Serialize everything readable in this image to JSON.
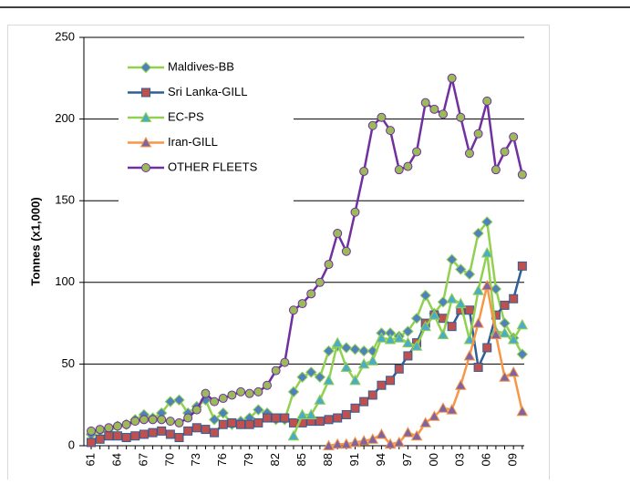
{
  "chart_data": {
    "type": "line",
    "y_label": "Tonnes (x1,000)",
    "categories": [
      "61",
      null,
      null,
      "64",
      null,
      null,
      "67",
      null,
      null,
      "70",
      null,
      null,
      "73",
      null,
      null,
      "76",
      null,
      null,
      "79",
      null,
      null,
      "82",
      null,
      null,
      "85",
      null,
      null,
      "88",
      null,
      null,
      "91",
      null,
      null,
      "94",
      null,
      null,
      "97",
      null,
      null,
      "00",
      null,
      null,
      "03",
      null,
      null,
      "06",
      null,
      null,
      "09",
      null
    ],
    "ylim": [
      0,
      250
    ],
    "yticks": [
      0,
      50,
      100,
      150,
      200,
      250
    ],
    "grid": true,
    "legend": "upper-left",
    "series": [
      {
        "name": "Maldives-BB",
        "color": "#92d050",
        "marker": "diamond",
        "marker_color": "#4f81bd",
        "values": [
          7,
          9,
          10,
          12,
          13,
          16,
          19,
          17,
          20,
          27,
          28,
          20,
          24,
          28,
          16,
          20,
          13,
          15,
          17,
          22,
          20,
          16,
          16,
          33,
          42,
          45,
          42,
          58,
          61,
          60,
          59,
          58,
          58,
          69,
          69,
          67,
          70,
          78,
          92,
          81,
          88,
          114,
          108,
          105,
          130,
          137,
          96,
          75,
          66,
          56
        ]
      },
      {
        "name": "Sri Lanka-GILL",
        "color": "#2e5f99",
        "marker": "square",
        "marker_color": "#c0504d",
        "values": [
          2,
          4,
          6,
          6,
          5,
          6,
          7,
          8,
          9,
          7,
          5,
          9,
          11,
          10,
          8,
          13,
          14,
          13,
          13,
          14,
          17,
          17,
          17,
          14,
          14,
          15,
          15,
          16,
          17,
          19,
          23,
          27,
          31,
          37,
          40,
          47,
          55,
          63,
          75,
          80,
          78,
          73,
          83,
          83,
          48,
          60,
          80,
          86,
          90,
          110
        ]
      },
      {
        "name": "EC-PS",
        "color": "#92d050",
        "marker": "triangle",
        "marker_color": "#4bacc6",
        "values": [
          null,
          null,
          null,
          null,
          null,
          null,
          null,
          null,
          null,
          null,
          null,
          null,
          null,
          null,
          null,
          null,
          null,
          null,
          null,
          null,
          null,
          null,
          null,
          6,
          19,
          19,
          28,
          40,
          63,
          48,
          40,
          50,
          52,
          66,
          65,
          66,
          63,
          61,
          73,
          80,
          68,
          90,
          87,
          65,
          95,
          118,
          70,
          69,
          65,
          74
        ]
      },
      {
        "name": "Iran-GILL",
        "color": "#f79646",
        "marker": "triangle",
        "marker_color": "#8064a2",
        "values": [
          null,
          null,
          null,
          null,
          null,
          null,
          null,
          null,
          null,
          null,
          null,
          null,
          null,
          null,
          null,
          null,
          null,
          null,
          null,
          null,
          null,
          null,
          null,
          null,
          null,
          null,
          null,
          0,
          1,
          1,
          2,
          3,
          4,
          7,
          1,
          2,
          8,
          6,
          14,
          18,
          23,
          22,
          37,
          55,
          75,
          98,
          68,
          42,
          45,
          21
        ]
      },
      {
        "name": "OTHER FLEETS",
        "color": "#7030a0",
        "marker": "circle",
        "marker_color": "#9bbb59",
        "values": [
          9,
          10,
          11,
          12,
          13,
          15,
          16,
          16,
          16,
          15,
          14,
          17,
          22,
          32,
          27,
          29,
          31,
          33,
          32,
          33,
          37,
          46,
          51,
          83,
          87,
          93,
          100,
          111,
          130,
          119,
          143,
          168,
          196,
          201,
          193,
          169,
          171,
          180,
          210,
          206,
          203,
          225,
          201,
          179,
          191,
          211,
          169,
          180,
          189,
          166
        ]
      }
    ]
  }
}
